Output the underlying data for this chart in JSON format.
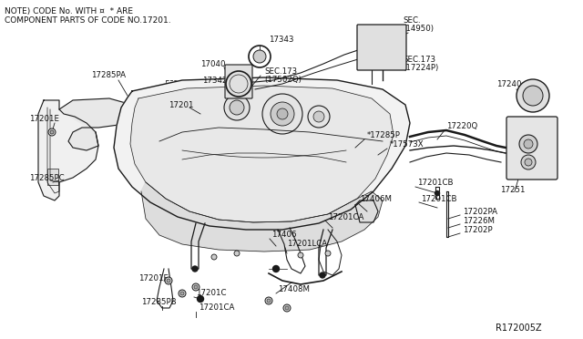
{
  "background_color": "#ffffff",
  "note_line1": "NOTE) CODE No. WITH ¤  * ARE",
  "note_line2": "COMPONENT PARTS OF CODE NO.17201.",
  "diagram_id": "R172005Z",
  "font_size_note": 6.5,
  "font_size_label": 6.2,
  "font_size_id": 7.0,
  "line_color": "#1a1a1a",
  "text_color": "#111111"
}
